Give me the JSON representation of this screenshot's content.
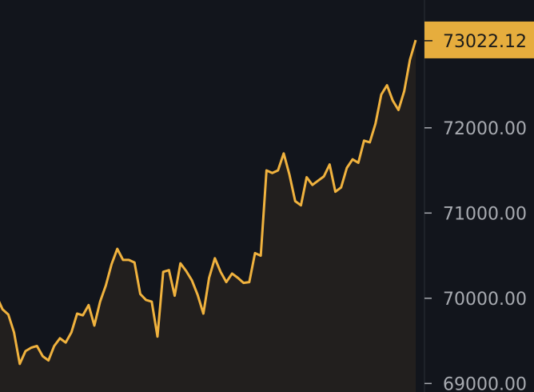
{
  "chart_data": {
    "type": "area",
    "title": "",
    "xlabel": "",
    "ylabel": "",
    "ylim": [
      68900,
      73500
    ],
    "yticks": [
      {
        "value": 72000,
        "label": "72000.00"
      },
      {
        "value": 71000,
        "label": "71000.00"
      },
      {
        "value": 70000,
        "label": "70000.00"
      },
      {
        "value": 69000,
        "label": "69000.00"
      }
    ],
    "current_price": {
      "value": 73022.12,
      "label": "73022.12"
    },
    "grid": false,
    "colors": {
      "background": "#12151c",
      "line": "#f0b23e",
      "fill": "#221f1e",
      "price_badge": "#e6ad3d",
      "axis_border": "#2a2e36",
      "tick_label": "#a8abb1"
    },
    "series": [
      {
        "values": [
          70020,
          69870,
          69810,
          69600,
          69230,
          69380,
          69420,
          69440,
          69320,
          69270,
          69440,
          69530,
          69480,
          69600,
          69820,
          69800,
          69920,
          69680,
          69960,
          70150,
          70400,
          70580,
          70450,
          70450,
          70420,
          70050,
          69980,
          69960,
          69550,
          70310,
          70330,
          70030,
          70410,
          70320,
          70210,
          70040,
          69820,
          70240,
          70470,
          70310,
          70190,
          70290,
          70240,
          70180,
          70190,
          70530,
          70500,
          71500,
          71470,
          71500,
          71700,
          71450,
          71140,
          71090,
          71420,
          71330,
          71380,
          71430,
          71570,
          71250,
          71300,
          71530,
          71630,
          71590,
          71850,
          71830,
          72050,
          72390,
          72500,
          72320,
          72210,
          72430,
          72800,
          73030
        ]
      }
    ]
  }
}
